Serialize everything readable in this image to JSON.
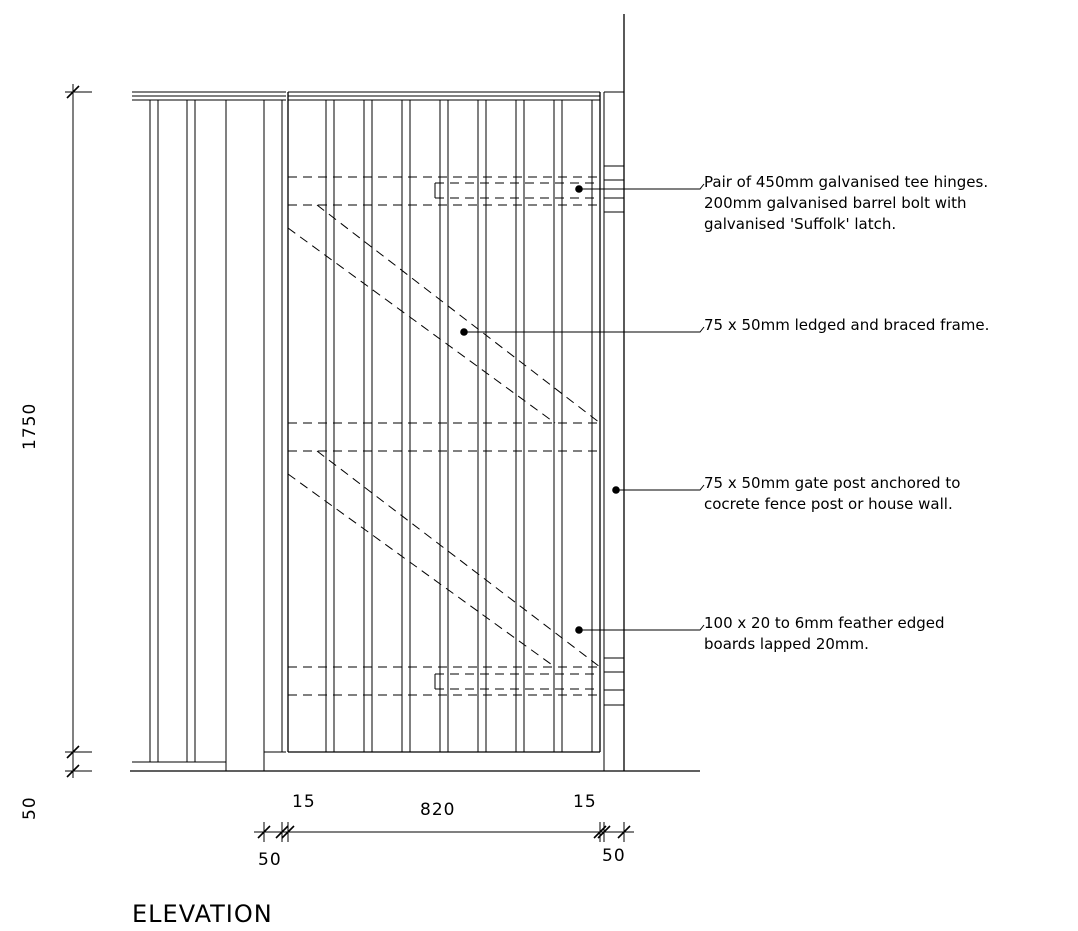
{
  "annotations": {
    "hinges_line1": "Pair of 450mm galvanised tee hinges.",
    "hinges_line2": "200mm galvanised barrel bolt with",
    "hinges_line3": "galvanised 'Suffolk' latch.",
    "frame": "75 x 50mm ledged and braced frame.",
    "post_line1": "75 x 50mm gate post anchored to",
    "post_line2": "cocrete fence post or house wall.",
    "boards_line1": "100 x 20 to 6mm feather edged",
    "boards_line2": "boards lapped 20mm."
  },
  "dimensions": {
    "height": "1750",
    "base": "50",
    "gap_left": "15",
    "width": "820",
    "gap_right": "15",
    "post_left": "50",
    "post_right": "50"
  },
  "title": "ELEVATION"
}
